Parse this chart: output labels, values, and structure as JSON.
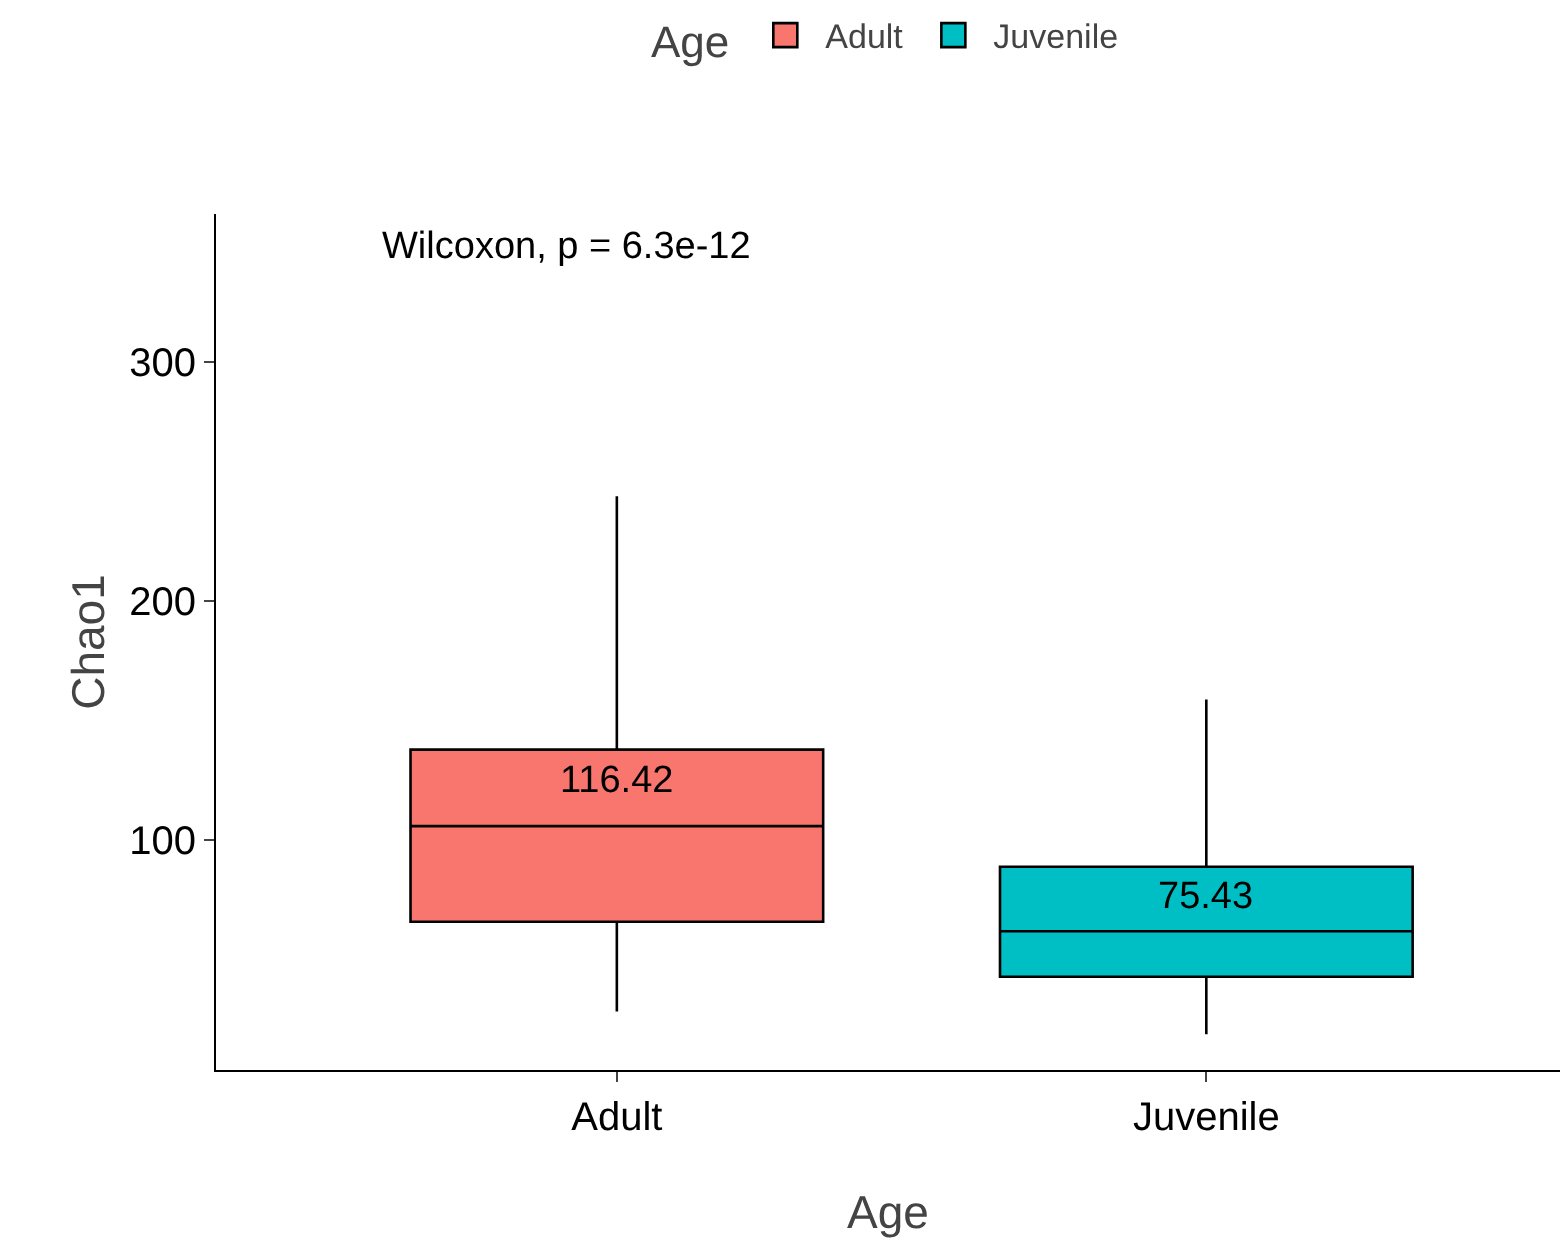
{
  "chart_data": {
    "type": "box",
    "xlabel": "Age",
    "ylabel": "Chao1",
    "legend_title": "Age",
    "legend": "top",
    "grid": false,
    "categories": [
      "Adult",
      "Juvenile"
    ],
    "series": [
      {
        "name": "Adult",
        "color": "#f8766d",
        "boxes": [
          {
            "low": 28.5,
            "q1": 66,
            "median": 106,
            "q3": 138,
            "high": 244
          },
          null
        ]
      },
      {
        "name": "Juvenile",
        "color": "#00bfc4",
        "boxes": [
          null,
          {
            "low": 19,
            "q1": 43,
            "median": 62,
            "q3": 89,
            "high": 159
          }
        ]
      }
    ],
    "ylim": [
      4,
      362
    ],
    "yticks": [
      100,
      200,
      300
    ],
    "annotations": [
      "Wilcoxon, p = 6.3e-12",
      "116.42",
      "75.43"
    ]
  }
}
